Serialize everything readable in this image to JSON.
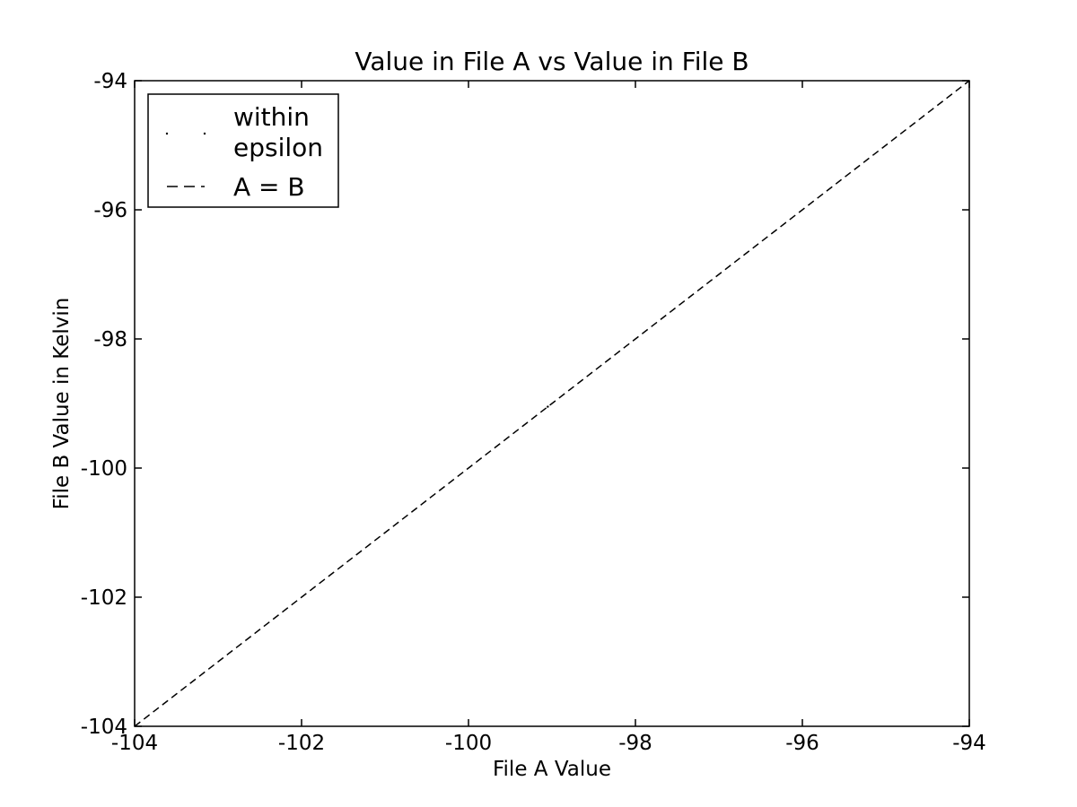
{
  "chart_data": {
    "type": "scatter",
    "title": "Value in File A vs Value in File B",
    "xlabel": "File A Value",
    "ylabel": "File B Value in Kelvin",
    "xlim": [
      -104,
      -94
    ],
    "ylim": [
      -104,
      -94
    ],
    "xticks": [
      -104,
      -102,
      -100,
      -98,
      -96,
      -94
    ],
    "yticks": [
      -104,
      -102,
      -100,
      -98,
      -96,
      -94
    ],
    "grid": false,
    "legend_position": "top-left",
    "series": [
      {
        "name": "within epsilon",
        "kind": "points",
        "marker": "pixel",
        "color": "#000000",
        "x": [
          -99.05
        ],
        "y": [
          -99.05
        ]
      },
      {
        "name": "A = B",
        "kind": "line",
        "line_style": "dashed",
        "color": "#000000",
        "x": [
          -104,
          -94
        ],
        "y": [
          -104,
          -94
        ]
      }
    ]
  },
  "legend": {
    "items": [
      {
        "label_lines": [
          "within",
          "epsilon"
        ]
      },
      {
        "label_lines": [
          "A = B"
        ]
      }
    ]
  }
}
